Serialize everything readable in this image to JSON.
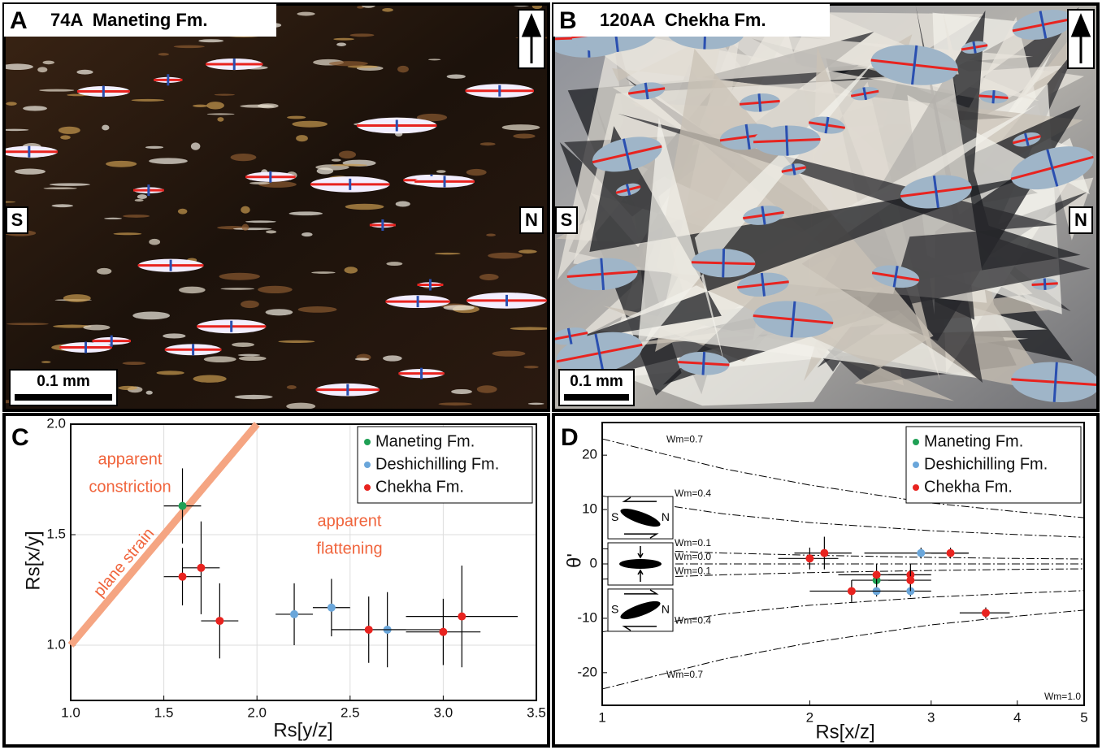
{
  "photos": [
    {
      "letter": "A",
      "title": "74A  Maneting Fm.",
      "left": "S",
      "right": "N",
      "scale_bar": "0.1 mm"
    },
    {
      "letter": "B",
      "title": "120AA  Chekha Fm.",
      "left": "S",
      "right": "N",
      "scale_bar": "0.1 mm"
    }
  ],
  "chart_data": [
    {
      "type": "scatter",
      "panel_label": "C",
      "x_label": "Rs[y/z]",
      "y_label": "Rs[x/y]",
      "xlim": [
        1.0,
        3.5
      ],
      "ylim": [
        0.75,
        2.0
      ],
      "xticks": [
        {
          "value": 1,
          "label": "1.0"
        },
        {
          "value": 1.5,
          "label": "1.5"
        },
        {
          "value": 2,
          "label": "2.0"
        },
        {
          "value": 2.5,
          "label": "2.5"
        },
        {
          "value": 3,
          "label": "3.0"
        },
        {
          "value": 3.5,
          "label": "3.5"
        }
      ],
      "yticks": [
        {
          "value": 1,
          "label": "1.0"
        },
        {
          "value": 1.5,
          "label": "1.5"
        },
        {
          "value": 2,
          "label": "2.0"
        }
      ],
      "grid": true,
      "legend": "upper right",
      "reference_line": {
        "label": "plane strain",
        "color": "#f5a582",
        "x": [
          1.0,
          2.0
        ],
        "values": [
          1.0,
          2.0
        ]
      },
      "annotations": [
        [
          "apparent",
          "constriction"
        ],
        [
          "apparent",
          "flattening"
        ]
      ],
      "series": [
        {
          "name": "Maneting Fm.",
          "color": "#1fa055",
          "x": [
            1.6
          ],
          "values": [
            1.63
          ],
          "xerr": [
            0.1
          ],
          "yerr": [
            0.17
          ]
        },
        {
          "name": "Deshichilling Fm.",
          "color": "#6aa6da",
          "x": [
            2.2,
            2.4,
            2.7
          ],
          "values": [
            1.14,
            1.17,
            1.07
          ],
          "xerr": [
            0.1,
            0.1,
            0.3
          ],
          "yerr": [
            0.14,
            0.13,
            0.17
          ]
        },
        {
          "name": "Chekha Fm.",
          "color": "#e8231f",
          "x": [
            1.6,
            1.7,
            1.8,
            2.6,
            3.0,
            3.1
          ],
          "values": [
            1.31,
            1.35,
            1.11,
            1.07,
            1.06,
            1.13
          ],
          "xerr": [
            0.1,
            0.1,
            0.1,
            0.2,
            0.2,
            0.3
          ],
          "yerr": [
            0.13,
            0.21,
            0.17,
            0.15,
            0.15,
            0.23
          ]
        }
      ]
    },
    {
      "type": "scatter",
      "panel_label": "D",
      "x_label": "Rs[x/z]",
      "y_label": "θ'",
      "xlim": [
        1,
        5
      ],
      "ylim": [
        -26,
        26
      ],
      "xscale": "log",
      "xticks": [
        1,
        2,
        3,
        4,
        5
      ],
      "yticks": [
        20,
        10,
        0,
        -10,
        -20
      ],
      "grid": false,
      "legend": "upper right",
      "icon_labels": [
        "S",
        "N"
      ],
      "extra_labels": [
        "Wm=1.0"
      ],
      "curves": [
        {
          "label": "Wm=0.7",
          "x": [
            1,
            1.5,
            2,
            3,
            4,
            5
          ],
          "values": [
            23,
            17.5,
            14.5,
            11.2,
            9.6,
            8.5
          ]
        },
        {
          "label": "Wm=0.4",
          "x": [
            1,
            1.5,
            2,
            3,
            4,
            5
          ],
          "values": [
            12.5,
            9.2,
            7.6,
            6.1,
            5.4,
            4.9
          ]
        },
        {
          "label": "Wm=0.1",
          "x": [
            1,
            1.5,
            2,
            3,
            4,
            5
          ],
          "values": [
            2.8,
            2.0,
            1.6,
            1.2,
            1.0,
            0.9
          ]
        },
        {
          "label": "Wm=0.0",
          "x": [
            1,
            5
          ],
          "values": [
            0,
            0
          ]
        },
        {
          "label": "Wm=0.1",
          "x": [
            1,
            1.5,
            2,
            3,
            4,
            5
          ],
          "values": [
            -2.8,
            -2.0,
            -1.6,
            -1.2,
            -1.0,
            -0.9
          ]
        },
        {
          "label": "Wm=0.4",
          "x": [
            1,
            1.5,
            2,
            3,
            4,
            5
          ],
          "values": [
            -12.5,
            -9.2,
            -7.6,
            -6.1,
            -5.4,
            -4.9
          ]
        },
        {
          "label": "Wm=0.7",
          "x": [
            1,
            1.5,
            2,
            3,
            4,
            5
          ],
          "values": [
            -23,
            -17.5,
            -14.5,
            -11.2,
            -9.6,
            -8.5
          ]
        }
      ],
      "series": [
        {
          "name": "Maneting Fm.",
          "color": "#1fa055",
          "x": [
            2.5
          ],
          "values": [
            -3
          ],
          "xerr": [
            0.2
          ],
          "yerr": [
            1
          ]
        },
        {
          "name": "Deshichilling Fm.",
          "color": "#6aa6da",
          "x": [
            2.9,
            2.5,
            2.8
          ],
          "values": [
            2,
            -5,
            -5
          ],
          "xerr": [
            0.5,
            0.2,
            0.2
          ],
          "yerr": [
            1,
            1,
            1
          ]
        },
        {
          "name": "Chekha Fm.",
          "color": "#e8231f",
          "x": [
            2.0,
            2.1,
            3.2,
            2.3,
            2.5,
            2.8,
            2.8,
            3.6
          ],
          "values": [
            1,
            2,
            2,
            -5,
            -2,
            -2,
            -3,
            -9
          ],
          "xerr": [
            0.2,
            0.2,
            0.2,
            0.3,
            0.3,
            0.2,
            0.2,
            0.3
          ],
          "yerr": [
            2,
            3,
            1,
            2,
            2,
            2,
            2,
            1
          ]
        }
      ]
    }
  ]
}
